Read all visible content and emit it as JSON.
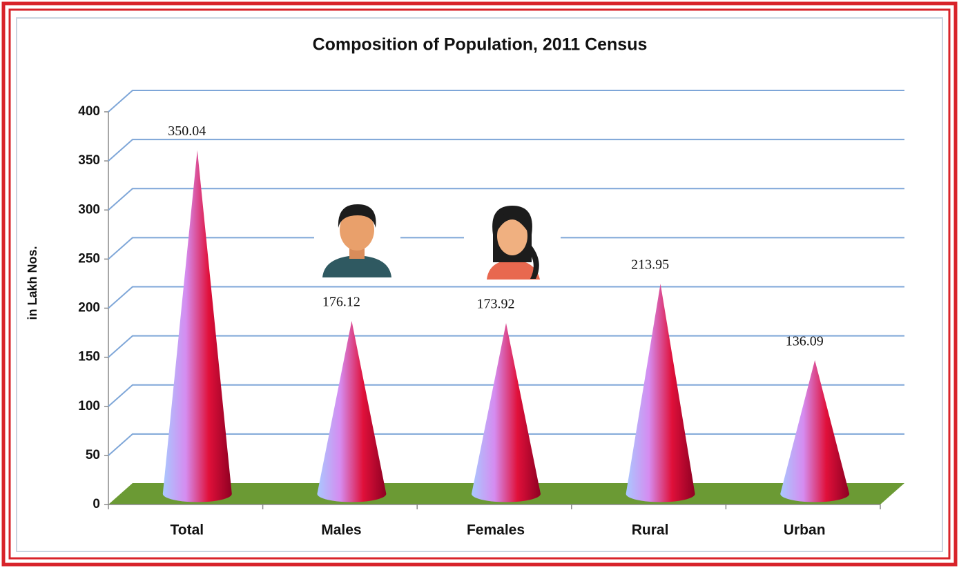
{
  "chart_data": {
    "type": "cone",
    "title": "Composition of Population, 2011 Census",
    "y_label": "in Lakh Nos.",
    "categories": [
      "Total",
      "Males",
      "Females",
      "Rural",
      "Urban"
    ],
    "values": [
      350.04,
      176.12,
      173.92,
      213.95,
      136.09
    ],
    "ylim": [
      0,
      400
    ],
    "yticks": [
      0,
      50,
      100,
      150,
      200,
      250,
      300,
      350,
      400
    ],
    "grid": true,
    "grid_color": "#7ea6d8",
    "floor_color": "#6b9a34",
    "colors": [
      "#a9c8ff",
      "#d58cf0",
      "#e0103a",
      "#8e0022"
    ]
  }
}
